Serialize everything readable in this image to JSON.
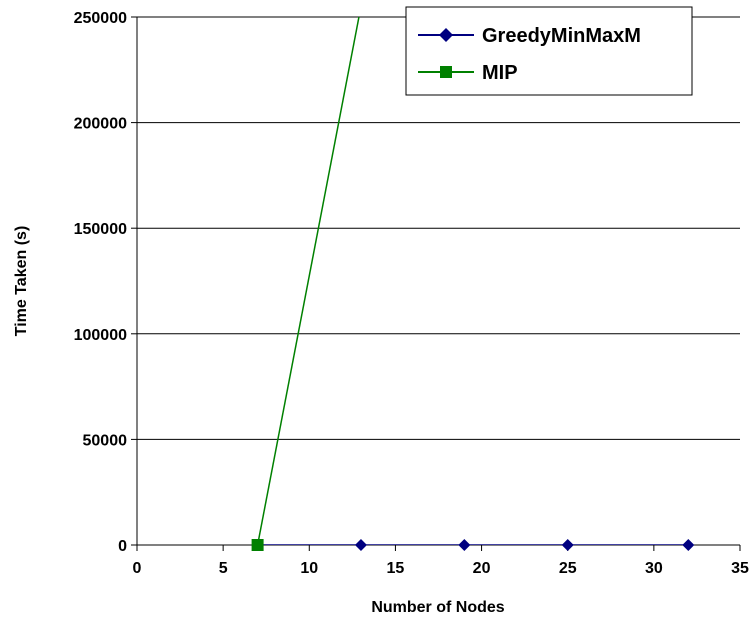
{
  "chart_data": {
    "type": "line",
    "title": "",
    "xlabel": "Number of Nodes",
    "ylabel": "Time Taken (s)",
    "xlim": [
      0,
      35
    ],
    "ylim": [
      0,
      250000
    ],
    "x_ticks": [
      0,
      5,
      10,
      15,
      20,
      25,
      30,
      35
    ],
    "y_ticks": [
      0,
      50000,
      100000,
      150000,
      200000,
      250000
    ],
    "grid": "horizontal",
    "legend_position": "top-right",
    "series": [
      {
        "name": "GreedyMinMaxM",
        "color": "#000080",
        "marker": "diamond",
        "x": [
          7,
          13,
          19,
          25,
          32
        ],
        "y": [
          0,
          0,
          0,
          0,
          0
        ]
      },
      {
        "name": "MIP",
        "color": "#008000",
        "marker": "square",
        "x": [
          7,
          13
        ],
        "y": [
          0,
          255000
        ]
      }
    ]
  }
}
